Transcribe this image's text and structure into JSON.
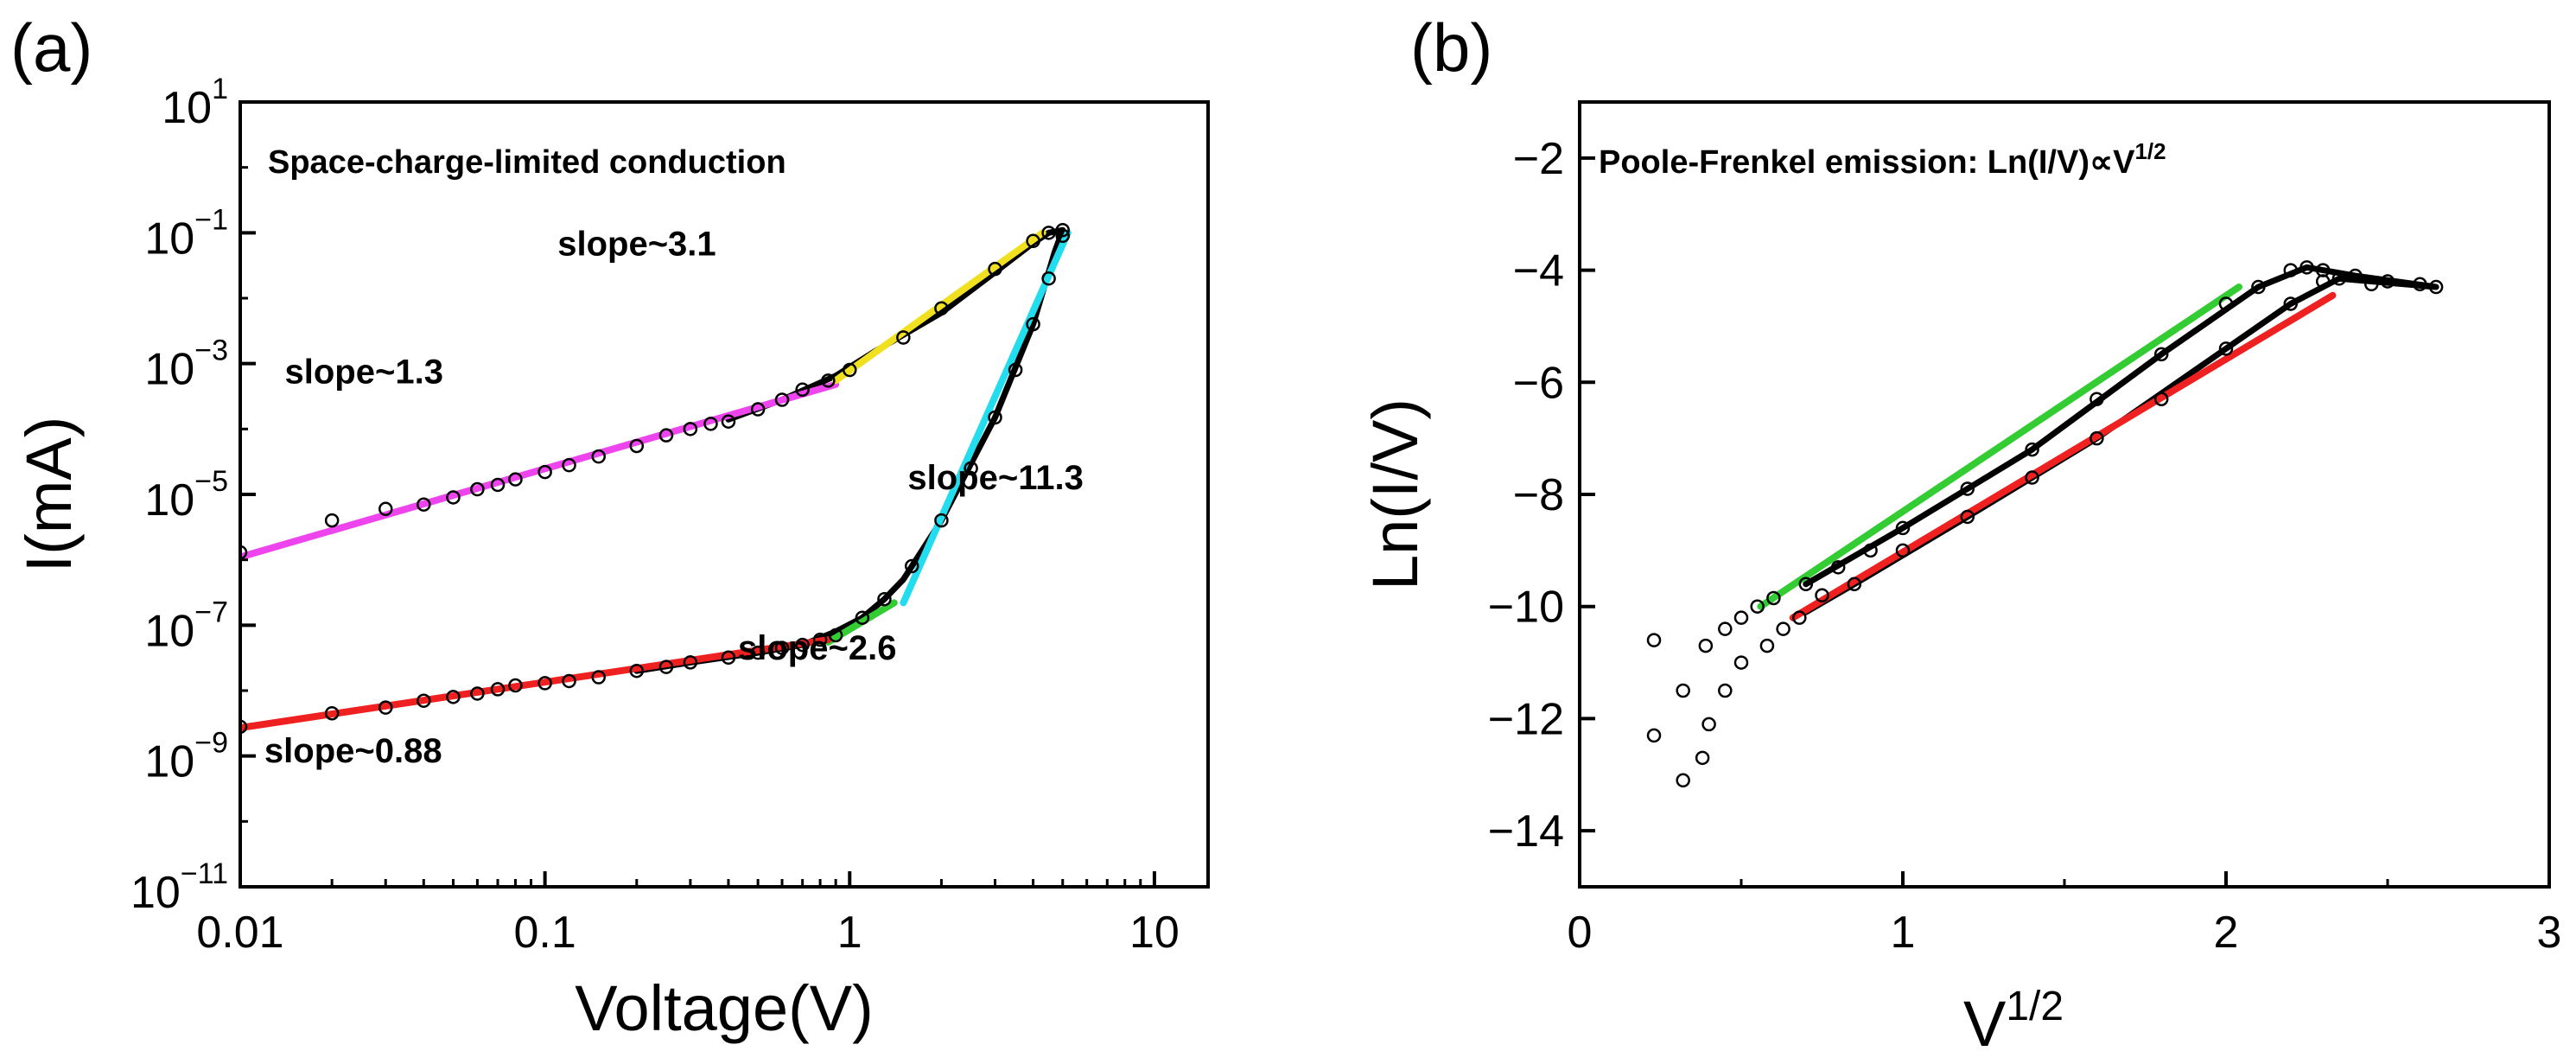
{
  "chart_data": [
    {
      "type": "scatter",
      "panel_label": "(a)",
      "title": "Space-charge-limited conduction",
      "xlabel": "Voltage(V)",
      "ylabel": "I(mA)",
      "x_scale": "log",
      "y_scale": "log",
      "xlim": [
        0.01,
        15
      ],
      "ylim": [
        1e-11,
        10
      ],
      "x_ticks": [
        {
          "value": 0.01,
          "label": "0.01"
        },
        {
          "value": 0.1,
          "label": "0.1"
        },
        {
          "value": 1,
          "label": "1"
        },
        {
          "value": 10,
          "label": "10"
        }
      ],
      "y_ticks": [
        {
          "value": 1e-11,
          "base": "10",
          "exp": "−11"
        },
        {
          "value": 1e-09,
          "base": "10",
          "exp": "−9"
        },
        {
          "value": 1e-07,
          "base": "10",
          "exp": "−7"
        },
        {
          "value": 1e-05,
          "base": "10",
          "exp": "−5"
        },
        {
          "value": 0.001,
          "base": "10",
          "exp": "−3"
        },
        {
          "value": 0.1,
          "base": "10",
          "exp": "−1"
        },
        {
          "value": 10,
          "base": "10",
          "exp": "1"
        }
      ],
      "series": [
        {
          "style": "markers",
          "color": "#000000",
          "points": [
            [
              0.01,
              1.3e-06
            ],
            [
              0.02,
              4e-06
            ],
            [
              0.03,
              6e-06
            ],
            [
              0.04,
              7e-06
            ],
            [
              0.05,
              9e-06
            ],
            [
              0.06,
              1.2e-05
            ],
            [
              0.07,
              1.4e-05
            ],
            [
              0.08,
              1.7e-05
            ],
            [
              0.1,
              2.2e-05
            ],
            [
              0.12,
              2.8e-05
            ],
            [
              0.15,
              3.8e-05
            ],
            [
              0.2,
              5.5e-05
            ],
            [
              0.25,
              8e-05
            ],
            [
              0.3,
              0.0001
            ],
            [
              0.35,
              0.00012
            ],
            [
              0.4,
              0.00013
            ],
            [
              0.5,
              0.0002
            ],
            [
              0.6,
              0.00028
            ],
            [
              0.7,
              0.0004
            ],
            [
              0.85,
              0.00055
            ],
            [
              1.0,
              0.0008
            ],
            [
              1.5,
              0.0025
            ],
            [
              2.0,
              0.007
            ],
            [
              3.0,
              0.028
            ],
            [
              4.0,
              0.075
            ],
            [
              4.5,
              0.1
            ],
            [
              5.0,
              0.11
            ],
            [
              5.0,
              0.09
            ],
            [
              4.5,
              0.02
            ],
            [
              4.0,
              0.004
            ],
            [
              3.5,
              0.0008
            ],
            [
              3.0,
              0.00015
            ],
            [
              2.5,
              2.5e-05
            ],
            [
              2.0,
              4e-06
            ],
            [
              1.6,
              8e-07
            ],
            [
              1.3,
              2.5e-07
            ],
            [
              1.1,
              1.3e-07
            ],
            [
              0.9,
              7e-08
            ],
            [
              0.8,
              6e-08
            ],
            [
              0.7,
              5e-08
            ],
            [
              0.6,
              4.5e-08
            ],
            [
              0.5,
              3.8e-08
            ],
            [
              0.4,
              3.2e-08
            ],
            [
              0.3,
              2.7e-08
            ],
            [
              0.25,
              2.3e-08
            ],
            [
              0.2,
              2e-08
            ],
            [
              0.15,
              1.6e-08
            ],
            [
              0.12,
              1.4e-08
            ],
            [
              0.1,
              1.3e-08
            ],
            [
              0.08,
              1.2e-08
            ],
            [
              0.07,
              1.05e-08
            ],
            [
              0.06,
              9e-09
            ],
            [
              0.05,
              8e-09
            ],
            [
              0.04,
              7e-09
            ],
            [
              0.03,
              5.5e-09
            ],
            [
              0.02,
              4.5e-09
            ],
            [
              0.01,
              2.8e-09
            ]
          ]
        },
        {
          "style": "line",
          "color": "#000000",
          "width": 7,
          "points": [
            [
              0.4,
              0.00014
            ],
            [
              0.6,
              0.00028
            ],
            [
              0.9,
              0.00065
            ],
            [
              1.2,
              0.0015
            ],
            [
              2.0,
              0.006
            ],
            [
              3.0,
              0.025
            ],
            [
              4.0,
              0.07
            ],
            [
              4.5,
              0.1
            ],
            [
              5.0,
              0.11
            ],
            [
              4.7,
              0.05
            ],
            [
              4.0,
              0.004
            ],
            [
              3.0,
              0.00015
            ],
            [
              2.0,
              4e-06
            ],
            [
              1.5,
              5e-07
            ],
            [
              1.3,
              2.5e-07
            ],
            [
              1.1,
              1.3e-07
            ],
            [
              0.9,
              8e-08
            ],
            [
              0.7,
              5e-08
            ],
            [
              0.5,
              3.8e-08
            ],
            [
              0.3,
              2.7e-08
            ],
            [
              0.2,
              2e-08
            ]
          ]
        },
        {
          "name": "slope~1.3",
          "style": "fit",
          "color": "#ee44ee",
          "points": [
            [
              0.01,
              1.1e-06
            ],
            [
              0.9,
              0.00048
            ]
          ]
        },
        {
          "name": "slope~3.1",
          "style": "fit",
          "color": "#f0e020",
          "points": [
            [
              0.9,
              0.00055
            ],
            [
              4.3,
              0.1
            ]
          ]
        },
        {
          "name": "slope~11.3",
          "style": "fit",
          "color": "#22ddee",
          "points": [
            [
              1.5,
              2.2e-07
            ],
            [
              5.2,
              0.1
            ]
          ]
        },
        {
          "name": "slope~2.6",
          "style": "fit",
          "color": "#33cc33",
          "points": [
            [
              0.85,
              5.5e-08
            ],
            [
              1.4,
              2.2e-07
            ]
          ]
        },
        {
          "name": "slope~0.88",
          "style": "fit",
          "color": "#ee2020",
          "points": [
            [
              0.01,
              2.7e-09
            ],
            [
              0.85,
              6e-08
            ]
          ]
        }
      ],
      "annotations": [
        {
          "text": "slope~3.1",
          "x": 0.11,
          "y": 0.045
        },
        {
          "text": "slope~1.3",
          "x": 0.014,
          "y": 0.0005
        },
        {
          "text": "slope~11.3",
          "x": 1.55,
          "y": 1.2e-05
        },
        {
          "text": "slope~2.6",
          "x": 0.43,
          "y": 3e-08
        },
        {
          "text": "slope~0.88",
          "x": 0.012,
          "y": 8e-10
        }
      ]
    },
    {
      "type": "scatter",
      "panel_label": "(b)",
      "title": "Poole-Frenkel emission: Ln(I/V)∝V",
      "title_superscript": "1/2",
      "xlabel": "V",
      "xlabel_superscript": "1/2",
      "ylabel": "Ln(I/V)",
      "xlim": [
        0,
        3
      ],
      "ylim": [
        -15,
        -1
      ],
      "x_ticks": [
        {
          "value": 0,
          "label": "0"
        },
        {
          "value": 1,
          "label": "1"
        },
        {
          "value": 2,
          "label": "2"
        },
        {
          "value": 3,
          "label": "3"
        }
      ],
      "y_ticks": [
        {
          "value": -2,
          "label": "−2"
        },
        {
          "value": -4,
          "label": "−4"
        },
        {
          "value": -6,
          "label": "−6"
        },
        {
          "value": -8,
          "label": "−8"
        },
        {
          "value": -10,
          "label": "−10"
        },
        {
          "value": -12,
          "label": "−12"
        },
        {
          "value": -14,
          "label": "−14"
        }
      ],
      "series": [
        {
          "style": "markers",
          "color": "#000000",
          "points": [
            [
              0.23,
              -10.6
            ],
            [
              0.32,
              -11.5
            ],
            [
              0.39,
              -10.7
            ],
            [
              0.45,
              -10.4
            ],
            [
              0.5,
              -10.2
            ],
            [
              0.55,
              -10.0
            ],
            [
              0.6,
              -9.85
            ],
            [
              0.7,
              -9.6
            ],
            [
              0.8,
              -9.3
            ],
            [
              0.9,
              -9.0
            ],
            [
              1.0,
              -8.6
            ],
            [
              1.2,
              -7.9
            ],
            [
              1.4,
              -7.2
            ],
            [
              1.6,
              -6.3
            ],
            [
              1.8,
              -5.5
            ],
            [
              2.0,
              -4.6
            ],
            [
              2.1,
              -4.3
            ],
            [
              2.2,
              -4.0
            ],
            [
              2.25,
              -3.95
            ],
            [
              2.3,
              -4.0
            ],
            [
              2.4,
              -4.1
            ],
            [
              2.5,
              -4.2
            ],
            [
              2.6,
              -4.25
            ],
            [
              2.65,
              -4.3
            ],
            [
              2.45,
              -4.25
            ],
            [
              2.35,
              -4.15
            ],
            [
              2.3,
              -4.2
            ],
            [
              2.2,
              -4.6
            ],
            [
              2.0,
              -5.4
            ],
            [
              1.8,
              -6.3
            ],
            [
              1.6,
              -7.0
            ],
            [
              1.4,
              -7.7
            ],
            [
              1.2,
              -8.4
            ],
            [
              1.0,
              -9.0
            ],
            [
              0.85,
              -9.6
            ],
            [
              0.75,
              -9.8
            ],
            [
              0.68,
              -10.2
            ],
            [
              0.63,
              -10.4
            ],
            [
              0.58,
              -10.7
            ],
            [
              0.5,
              -11.0
            ],
            [
              0.45,
              -11.5
            ],
            [
              0.4,
              -12.1
            ],
            [
              0.38,
              -12.7
            ],
            [
              0.32,
              -13.1
            ],
            [
              0.23,
              -12.3
            ]
          ]
        },
        {
          "style": "line",
          "color": "#000000",
          "width": 7,
          "points": [
            [
              0.7,
              -9.6
            ],
            [
              1.0,
              -8.6
            ],
            [
              1.4,
              -7.2
            ],
            [
              1.8,
              -5.5
            ],
            [
              2.1,
              -4.3
            ],
            [
              2.25,
              -3.95
            ],
            [
              2.4,
              -4.1
            ],
            [
              2.65,
              -4.3
            ],
            [
              2.45,
              -4.2
            ],
            [
              2.35,
              -4.15
            ],
            [
              2.2,
              -4.6
            ],
            [
              2.0,
              -5.4
            ],
            [
              1.6,
              -7.0
            ],
            [
              1.2,
              -8.4
            ],
            [
              0.85,
              -9.6
            ],
            [
              0.7,
              -10.1
            ]
          ]
        },
        {
          "style": "fit",
          "color": "#33cc33",
          "points": [
            [
              0.56,
              -10.0
            ],
            [
              2.04,
              -4.3
            ]
          ]
        },
        {
          "style": "fit",
          "color": "#ee2020",
          "points": [
            [
              0.66,
              -10.2
            ],
            [
              2.33,
              -4.45
            ]
          ]
        }
      ]
    }
  ]
}
